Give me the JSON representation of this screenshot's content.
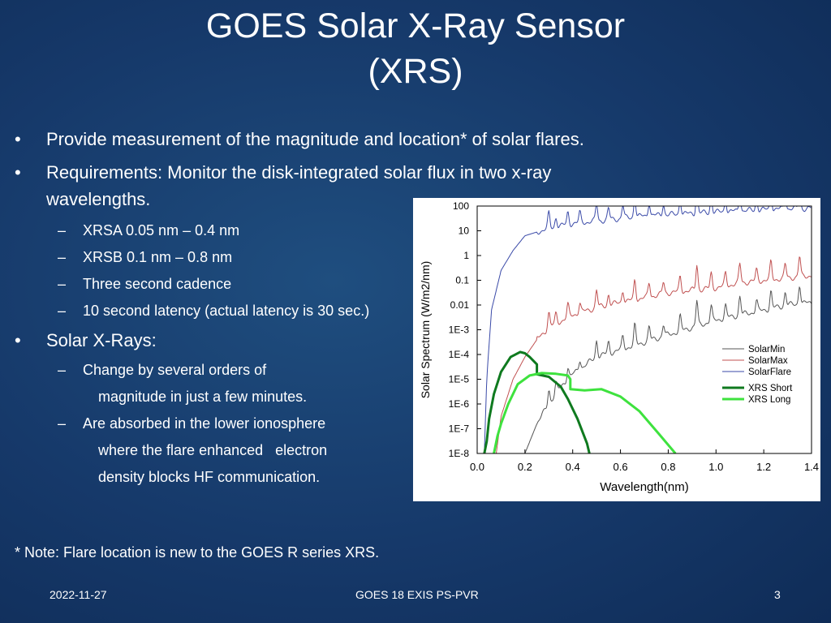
{
  "slide": {
    "title_line1": "GOES Solar X-Ray Sensor",
    "title_line2": "(XRS)",
    "bullets": {
      "b1": "Provide measurement of the magnitude and location* of solar flares.",
      "b2_line1": "Requirements: Monitor the disk-integrated solar flux in two x-ray",
      "b2_line2": "wavelengths.",
      "sub1": "XRSA 0.05 nm – 0.4 nm",
      "sub2": "XRSB 0.1 nm – 0.8 nm",
      "sub3": "Three second cadence",
      "sub4": "10 second latency (actual latency is 30 sec.)",
      "b3": "Solar X-Rays:",
      "sub5_line1": "Change by several orders of",
      "sub5_line2": "magnitude in just a few minutes.",
      "sub6_line1": "Are absorbed in the lower ionosphere",
      "sub6_line2": "where the flare enhanced   electron",
      "sub6_line3": "density blocks HF communication."
    },
    "bullet_char": "•",
    "dash_char": "–",
    "footnote": "* Note: Flare location is new to the GOES R series XRS.",
    "footer": {
      "date": "2022-11-27",
      "center": "GOES 18 EXIS PS-PVR",
      "page": "3"
    }
  },
  "chart_data": {
    "type": "line",
    "title": "",
    "xlabel": "Wavelength(nm)",
    "ylabel": "Solar Spectrum (W/m2/nm)",
    "xlim": [
      0.0,
      1.4
    ],
    "ylim_log10": [
      -8,
      2
    ],
    "x_ticks": [
      "0.0",
      "0.2",
      "0.4",
      "0.6",
      "0.8",
      "1.0",
      "1.2",
      "1.4"
    ],
    "x_tick_values": [
      0.0,
      0.2,
      0.4,
      0.6,
      0.8,
      1.0,
      1.2,
      1.4
    ],
    "y_ticks": [
      "100",
      "10",
      "1",
      "0.1",
      "0.01",
      "1E-3",
      "1E-4",
      "1E-5",
      "1E-6",
      "1E-7",
      "1E-8"
    ],
    "y_tick_log10": [
      2,
      1,
      0,
      -1,
      -2,
      -3,
      -4,
      -5,
      -6,
      -7,
      -8
    ],
    "legend_position": "right",
    "series": [
      {
        "name": "SolarMin",
        "color": "#555555",
        "width": 1,
        "kind": "spectrum",
        "x": [
          0.2,
          0.25,
          0.3,
          0.35,
          0.4,
          0.5,
          0.6,
          0.7,
          0.8,
          0.9,
          1.0,
          1.1,
          1.2,
          1.3,
          1.4
        ],
        "y": [
          -8,
          -6.8,
          -6.0,
          -5.3,
          -4.8,
          -4.1,
          -3.8,
          -3.5,
          -3.2,
          -2.9,
          -2.6,
          -2.4,
          -2.2,
          -2.0,
          -1.9
        ]
      },
      {
        "name": "SolarMax",
        "color": "#c05050",
        "width": 1,
        "kind": "spectrum",
        "x": [
          0.08,
          0.1,
          0.15,
          0.2,
          0.25,
          0.3,
          0.4,
          0.5,
          0.6,
          0.7,
          0.8,
          0.9,
          1.0,
          1.1,
          1.2,
          1.3,
          1.4
        ],
        "y": [
          -8,
          -6.5,
          -5.0,
          -4.1,
          -3.4,
          -2.9,
          -2.4,
          -2.1,
          -1.9,
          -1.7,
          -1.5,
          -1.4,
          -1.3,
          -1.1,
          -1.0,
          -0.9,
          -0.8
        ]
      },
      {
        "name": "SolarFlare",
        "color": "#3a4aa8",
        "width": 1,
        "kind": "spectrum",
        "x": [
          0.03,
          0.04,
          0.06,
          0.1,
          0.15,
          0.2,
          0.3,
          0.4,
          0.5,
          0.6,
          0.7,
          0.8,
          0.9,
          1.0,
          1.1,
          1.2,
          1.3,
          1.4
        ],
        "y": [
          -8,
          -5.0,
          -2.2,
          -0.6,
          0.2,
          0.8,
          1.1,
          1.3,
          1.4,
          1.5,
          1.6,
          1.65,
          1.7,
          1.75,
          1.8,
          1.85,
          1.9,
          1.9
        ]
      },
      {
        "name": "XRS Short",
        "color": "#0f7a1f",
        "width": 3,
        "kind": "response",
        "x": [
          0.03,
          0.04,
          0.05,
          0.07,
          0.1,
          0.14,
          0.18,
          0.2,
          0.22,
          0.25,
          0.25,
          0.3,
          0.35,
          0.38,
          0.42,
          0.46,
          0.47
        ],
        "y": [
          -8,
          -7.5,
          -6.6,
          -5.6,
          -4.7,
          -4.1,
          -3.9,
          -3.95,
          -4.1,
          -4.4,
          -4.8,
          -4.9,
          -5.3,
          -5.8,
          -6.6,
          -7.6,
          -8
        ]
      },
      {
        "name": "XRS Long",
        "color": "#3ee23e",
        "width": 3,
        "kind": "response",
        "x": [
          0.07,
          0.085,
          0.1,
          0.13,
          0.17,
          0.22,
          0.27,
          0.33,
          0.38,
          0.39,
          0.39,
          0.45,
          0.52,
          0.6,
          0.68,
          0.76,
          0.83
        ],
        "y": [
          -8,
          -7.3,
          -6.8,
          -6.0,
          -5.2,
          -4.85,
          -4.75,
          -4.78,
          -4.85,
          -5.0,
          -5.4,
          -5.45,
          -5.4,
          -5.7,
          -6.3,
          -7.2,
          -8
        ]
      }
    ],
    "spectral_lines": {
      "x": [
        0.3,
        0.33,
        0.38,
        0.43,
        0.5,
        0.55,
        0.61,
        0.66,
        0.72,
        0.78,
        0.85,
        0.92,
        0.98,
        1.04,
        1.1,
        1.17,
        1.23,
        1.29,
        1.35
      ],
      "height": [
        0.6,
        0.4,
        0.5,
        0.4,
        0.7,
        0.45,
        0.5,
        0.8,
        0.55,
        0.45,
        0.6,
        1.0,
        0.6,
        0.5,
        0.75,
        0.45,
        0.7,
        0.55,
        0.8
      ]
    }
  }
}
